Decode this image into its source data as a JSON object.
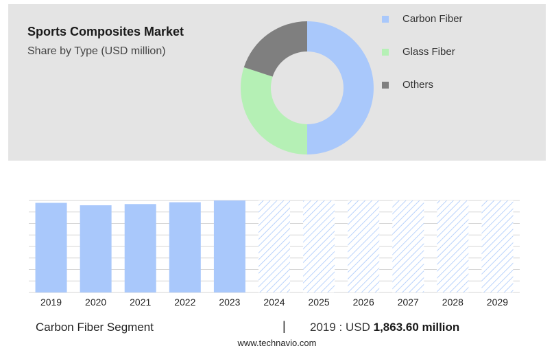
{
  "header": {
    "title": "Sports Composites Market",
    "subtitle": "Share by Type (USD million)"
  },
  "colors": {
    "carbon_fiber": "#a9c8fb",
    "glass_fiber": "#b5f0b5",
    "others": "#7f7f7f",
    "hatch": "#a9c8fb",
    "panel": "#e4e4e4"
  },
  "chart_data": [
    {
      "type": "pie",
      "subtype": "donut",
      "slices": [
        {
          "name": "Carbon Fiber",
          "value": 50
        },
        {
          "name": "Glass Fiber",
          "value": 30
        },
        {
          "name": "Others",
          "value": 20
        }
      ],
      "legend": [
        "Carbon Fiber",
        "Glass Fiber",
        "Others"
      ],
      "legend_placement": "right"
    },
    {
      "type": "bar",
      "categories": [
        "2019",
        "2020",
        "2021",
        "2022",
        "2023",
        "2024",
        "2025",
        "2026",
        "2027",
        "2028",
        "2029"
      ],
      "values": [
        1863.6,
        1813,
        1838,
        1876,
        1913,
        1913,
        1913,
        1913,
        1913,
        1913,
        1913
      ],
      "forecast_from": "2024",
      "ylim": [
        0,
        1913
      ],
      "grid": true
    }
  ],
  "footer": {
    "segment_label": "Carbon Fiber Segment",
    "separator": "|",
    "value_prefix": "2019 : USD ",
    "value_bold": "1,863.60 million",
    "source": "www.technavio.com"
  }
}
